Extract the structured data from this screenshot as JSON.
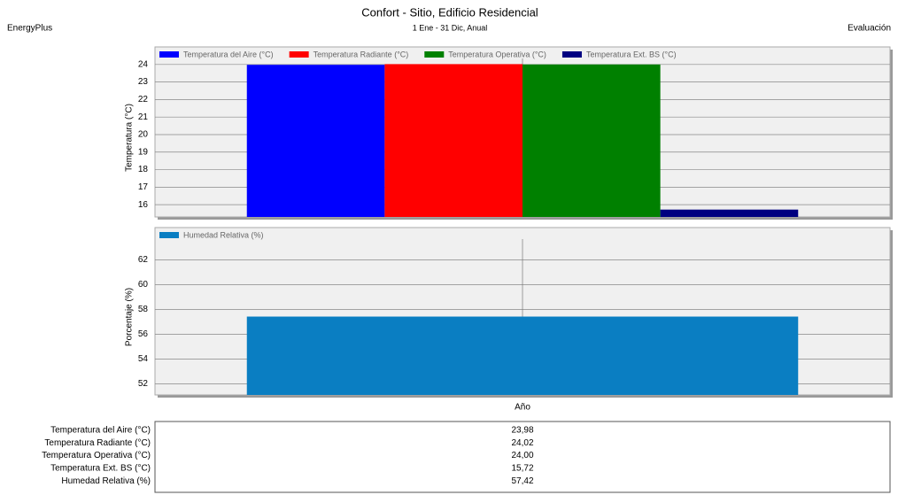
{
  "header": {
    "left": "EnergyPlus",
    "right": "Evaluación",
    "title": "Confort - Sitio, Edificio Residencial",
    "subtitle": "1 Ene - 31 Dic, Anual"
  },
  "chart_data": [
    {
      "type": "bar",
      "y_label": "Temperatura (°C)",
      "categories": [
        null
      ],
      "series": [
        {
          "name": "Temperatura del Aire (°C)",
          "color": "#0000ff",
          "values": [
            23.98
          ]
        },
        {
          "name": "Temperatura Radiante (°C)",
          "color": "#ff0000",
          "values": [
            24.02
          ]
        },
        {
          "name": "Temperatura Operativa (°C)",
          "color": "#008000",
          "values": [
            24.0
          ]
        },
        {
          "name": "Temperatura Ext. BS (°C)",
          "color": "#000080",
          "values": [
            15.72
          ]
        }
      ],
      "ylim": [
        15.3,
        25
      ],
      "yticks": [
        16,
        17,
        18,
        19,
        20,
        21,
        22,
        23,
        24
      ],
      "grid": true
    },
    {
      "type": "bar",
      "y_label": "Porcentaje (%)",
      "categories": [
        "Año"
      ],
      "series": [
        {
          "name": "Humedad Relativa (%)",
          "color": "#0a7ec2",
          "values": [
            57.42
          ]
        }
      ],
      "ylim": [
        51.1,
        64.6
      ],
      "yticks": [
        52,
        54,
        56,
        58,
        60,
        62
      ],
      "grid": true
    }
  ],
  "table": {
    "rows": [
      [
        "Temperatura del Aire (°C)",
        "23,98"
      ],
      [
        "Temperatura Radiante (°C)",
        "24,02"
      ],
      [
        "Temperatura Operativa (°C)",
        "24,00"
      ],
      [
        "Temperatura Ext. BS (°C)",
        "15,72"
      ],
      [
        "Humedad Relativa (%)",
        "57,42"
      ]
    ]
  }
}
